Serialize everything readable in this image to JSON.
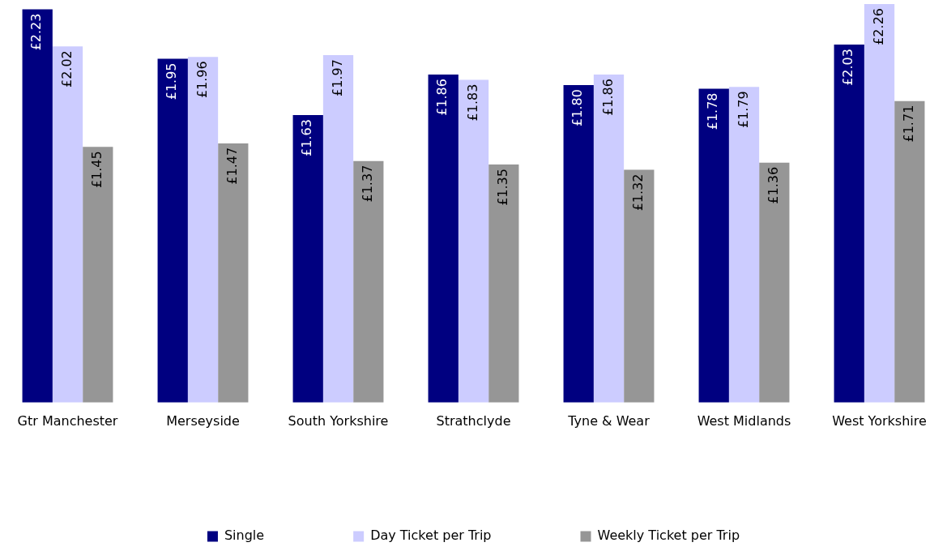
{
  "chart_data": {
    "type": "bar",
    "categories": [
      "Gtr Manchester",
      "Merseyside",
      "South Yorkshire",
      "Strathclyde",
      "Tyne & Wear",
      "West Midlands",
      "West Yorkshire"
    ],
    "legend": "bottom",
    "grid": false,
    "series": [
      {
        "name": "Single",
        "color": "#000080",
        "values": [
          2.23,
          1.95,
          1.63,
          1.86,
          1.8,
          1.78,
          2.03
        ],
        "value_labels": [
          "£2.23",
          "£1.95",
          "£1.63",
          "£1.86",
          "£1.80",
          "£1.78",
          "£2.03"
        ]
      },
      {
        "name": "Day Ticket per Trip",
        "color": "#ccccff",
        "values": [
          2.02,
          1.96,
          1.97,
          1.83,
          1.86,
          1.79,
          2.26
        ],
        "value_labels": [
          "£2.02",
          "£1.96",
          "£1.97",
          "£1.83",
          "£1.86",
          "£1.79",
          "£2.26"
        ]
      },
      {
        "name": "Weekly Ticket per Trip",
        "color": "#969696",
        "values": [
          1.45,
          1.47,
          1.37,
          1.35,
          1.32,
          1.36,
          1.71
        ],
        "value_labels": [
          "£1.45",
          "£1.47",
          "£1.37",
          "£1.35",
          "£1.32",
          "£1.36",
          "£1.71"
        ]
      }
    ]
  }
}
